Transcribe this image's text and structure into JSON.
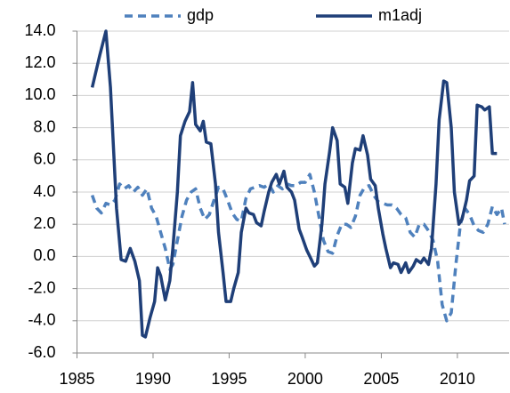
{
  "chart_data": {
    "type": "line",
    "xlim": [
      1985,
      2013.4
    ],
    "xticks": [
      1985,
      1990,
      1995,
      2000,
      2005,
      2010
    ],
    "ylim": [
      -6,
      14
    ],
    "yticks": [
      {
        "value": 14,
        "label": "14.0"
      },
      {
        "value": 12,
        "label": "12.0"
      },
      {
        "value": 10,
        "label": "10.0"
      },
      {
        "value": 8,
        "label": "8.0"
      },
      {
        "value": 6,
        "label": "6.0"
      },
      {
        "value": 4,
        "label": "4.0"
      },
      {
        "value": 2,
        "label": "2.0"
      },
      {
        "value": 0,
        "label": "0.0"
      },
      {
        "value": -2,
        "label": "-2.0"
      },
      {
        "value": -4,
        "label": "-4.0"
      },
      {
        "value": -6,
        "label": "-6.0"
      }
    ],
    "grid": true,
    "legend": "top",
    "series": [
      {
        "name": "gdp",
        "color": "#4f81bd",
        "dashed": true,
        "x": [
          1986.0,
          1986.3,
          1986.6,
          1986.9,
          1987.2,
          1987.5,
          1987.8,
          1988.1,
          1988.4,
          1988.7,
          1989.0,
          1989.3,
          1989.6,
          1989.9,
          1990.2,
          1990.5,
          1990.8,
          1991.1,
          1991.3,
          1991.6,
          1991.9,
          1992.2,
          1992.5,
          1992.8,
          1993.1,
          1993.4,
          1993.7,
          1994.0,
          1994.3,
          1994.6,
          1994.9,
          1995.2,
          1995.5,
          1995.8,
          1996.1,
          1996.4,
          1996.7,
          1997.0,
          1997.3,
          1997.6,
          1997.9,
          1998.2,
          1998.5,
          1998.8,
          1999.1,
          1999.4,
          1999.7,
          2000.0,
          2000.3,
          2000.6,
          2000.9,
          2001.2,
          2001.5,
          2001.8,
          2002.1,
          2002.4,
          2002.7,
          2003.0,
          2003.3,
          2003.6,
          2003.9,
          2004.2,
          2004.5,
          2004.8,
          2005.1,
          2005.4,
          2005.7,
          2006.0,
          2006.3,
          2006.6,
          2006.9,
          2007.2,
          2007.5,
          2007.8,
          2008.1,
          2008.4,
          2008.7,
          2009.0,
          2009.3,
          2009.6,
          2009.9,
          2010.2,
          2010.5,
          2010.8,
          2011.1,
          2011.4,
          2011.7,
          2012.0,
          2012.3,
          2012.6,
          2012.9,
          2013.1
        ],
        "values": [
          3.8,
          3.0,
          2.7,
          3.3,
          3.2,
          3.5,
          4.5,
          4.2,
          4.4,
          4.0,
          4.3,
          3.8,
          4.2,
          3.0,
          2.5,
          1.5,
          0.5,
          -0.8,
          -0.5,
          1.0,
          2.5,
          3.5,
          4.0,
          4.2,
          3.0,
          2.3,
          2.6,
          3.5,
          4.3,
          4.2,
          3.5,
          2.7,
          2.3,
          2.2,
          3.6,
          4.2,
          4.3,
          4.4,
          4.3,
          4.5,
          4.0,
          4.4,
          4.2,
          4.5,
          4.4,
          4.4,
          4.6,
          4.6,
          5.1,
          4.0,
          2.5,
          1.0,
          0.3,
          0.2,
          1.3,
          2.0,
          2.0,
          1.8,
          2.5,
          3.8,
          4.3,
          4.4,
          3.8,
          3.4,
          3.3,
          3.2,
          3.2,
          3.0,
          2.6,
          2.4,
          1.5,
          1.2,
          2.0,
          2.0,
          1.6,
          1.0,
          -0.3,
          -3.0,
          -4.0,
          -3.5,
          -0.5,
          2.0,
          3.0,
          2.6,
          1.9,
          1.6,
          1.5,
          2.0,
          3.1,
          2.6,
          3.0,
          2.0
        ]
      },
      {
        "name": "m1adj",
        "color": "#1f3f78",
        "dashed": false,
        "x": [
          1986.0,
          1986.5,
          1986.9,
          1987.2,
          1987.6,
          1987.9,
          1988.2,
          1988.5,
          1988.8,
          1989.1,
          1989.3,
          1989.5,
          1989.8,
          1990.1,
          1990.3,
          1990.5,
          1990.8,
          1991.1,
          1991.3,
          1991.6,
          1991.8,
          1992.1,
          1992.4,
          1992.6,
          1992.8,
          1993.1,
          1993.3,
          1993.5,
          1993.8,
          1994.1,
          1994.3,
          1994.6,
          1994.8,
          1995.1,
          1995.3,
          1995.6,
          1995.8,
          1996.1,
          1996.3,
          1996.6,
          1996.8,
          1997.1,
          1997.3,
          1997.6,
          1997.8,
          1998.1,
          1998.3,
          1998.6,
          1998.8,
          1999.1,
          1999.3,
          1999.6,
          1999.8,
          2000.1,
          2000.3,
          2000.6,
          2000.8,
          2001.1,
          2001.3,
          2001.6,
          2001.8,
          2002.1,
          2002.3,
          2002.6,
          2002.8,
          2003.1,
          2003.3,
          2003.6,
          2003.8,
          2004.1,
          2004.3,
          2004.6,
          2004.8,
          2005.1,
          2005.3,
          2005.6,
          2005.8,
          2006.1,
          2006.3,
          2006.6,
          2006.8,
          2007.1,
          2007.3,
          2007.6,
          2007.8,
          2008.1,
          2008.3,
          2008.6,
          2008.8,
          2009.1,
          2009.3,
          2009.6,
          2009.8,
          2010.1,
          2010.3,
          2010.6,
          2010.8,
          2011.1,
          2011.3,
          2011.6,
          2011.8,
          2012.1,
          2012.3,
          2012.6
        ],
        "values": [
          10.5,
          12.5,
          14.0,
          10.5,
          3.0,
          -0.2,
          -0.3,
          0.5,
          -0.3,
          -1.5,
          -4.9,
          -5.0,
          -3.8,
          -2.8,
          -0.7,
          -1.2,
          -2.7,
          -1.5,
          0.5,
          4.0,
          7.5,
          8.4,
          9.0,
          10.8,
          8.2,
          7.8,
          8.4,
          7.1,
          7.0,
          4.5,
          1.5,
          -1.0,
          -2.8,
          -2.8,
          -2.0,
          -1.0,
          1.5,
          3.0,
          2.7,
          2.6,
          2.1,
          1.9,
          2.8,
          4.0,
          4.6,
          5.1,
          4.5,
          5.3,
          4.3,
          4.0,
          3.5,
          1.7,
          1.2,
          0.4,
          0.0,
          -0.6,
          -0.4,
          2.0,
          4.5,
          6.5,
          8.0,
          7.2,
          4.5,
          4.3,
          3.3,
          5.8,
          6.7,
          6.6,
          7.5,
          6.3,
          4.8,
          4.4,
          3.0,
          1.4,
          0.5,
          -0.7,
          -0.4,
          -0.5,
          -1.0,
          -0.4,
          -1.0,
          -0.6,
          -0.2,
          -0.4,
          -0.1,
          -0.5,
          0.5,
          4.5,
          8.5,
          10.9,
          10.8,
          8.0,
          4.0,
          2.0,
          2.3,
          3.5,
          4.7,
          5.0,
          9.4,
          9.3,
          9.1,
          9.3,
          6.4,
          6.4
        ]
      }
    ]
  }
}
